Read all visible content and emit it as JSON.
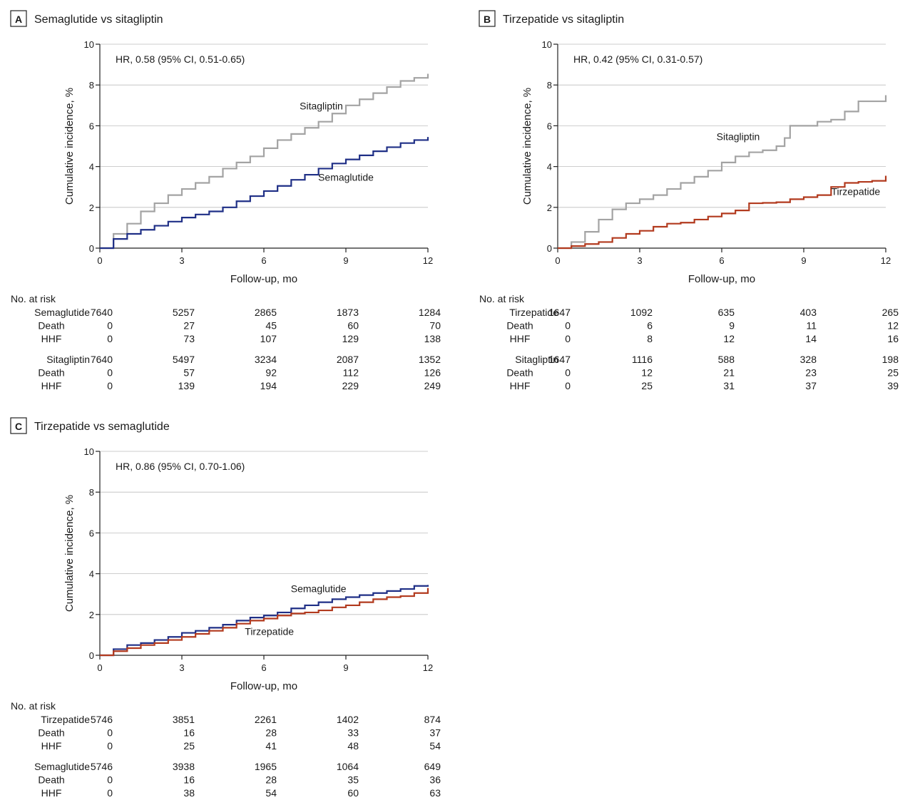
{
  "colors": {
    "sitagliptin": "#a3a3a3",
    "semaglutide": "#1f2f86",
    "tirzepatide": "#b23a1e",
    "axis": "#222222",
    "grid": "#bdbdbd"
  },
  "common": {
    "xlabel": "Follow-up, mo",
    "ylabel": "Cumulative incidence, %",
    "xticks": [
      0,
      3,
      6,
      9,
      12
    ],
    "yticks": [
      0,
      2,
      4,
      6,
      8,
      10
    ],
    "xlim": [
      0,
      12
    ],
    "ylim": [
      0,
      10
    ],
    "risk_header": "No. at risk",
    "sub_rows": [
      "Death",
      "HHF"
    ]
  },
  "chart_data": [
    {
      "type": "line",
      "panel_letter": "A",
      "title": "Semaglutide vs sitagliptin",
      "hr_text": "HR, 0.58 (95% CI, 0.51-0.65)",
      "grid": "horizontal",
      "series": [
        {
          "name": "Sitagliptin",
          "color_key": "sitagliptin",
          "label_at": [
            8.1,
            6.8
          ],
          "points": [
            [
              0,
              0
            ],
            [
              0.5,
              0.7
            ],
            [
              1,
              1.2
            ],
            [
              1.5,
              1.8
            ],
            [
              2,
              2.2
            ],
            [
              2.5,
              2.6
            ],
            [
              3,
              2.9
            ],
            [
              3.5,
              3.2
            ],
            [
              4,
              3.5
            ],
            [
              4.5,
              3.9
            ],
            [
              5,
              4.2
            ],
            [
              5.5,
              4.5
            ],
            [
              6,
              4.9
            ],
            [
              6.5,
              5.3
            ],
            [
              7,
              5.6
            ],
            [
              7.5,
              5.9
            ],
            [
              8,
              6.2
            ],
            [
              8.5,
              6.6
            ],
            [
              9,
              7.0
            ],
            [
              9.5,
              7.3
            ],
            [
              10,
              7.6
            ],
            [
              10.5,
              7.9
            ],
            [
              11,
              8.2
            ],
            [
              11.5,
              8.35
            ],
            [
              12,
              8.55
            ]
          ]
        },
        {
          "name": "Semaglutide",
          "color_key": "semaglutide",
          "label_at": [
            9.0,
            3.3
          ],
          "points": [
            [
              0,
              0
            ],
            [
              0.5,
              0.45
            ],
            [
              1,
              0.7
            ],
            [
              1.5,
              0.9
            ],
            [
              2,
              1.1
            ],
            [
              2.5,
              1.3
            ],
            [
              3,
              1.5
            ],
            [
              3.5,
              1.65
            ],
            [
              4,
              1.8
            ],
            [
              4.5,
              2.0
            ],
            [
              5,
              2.3
            ],
            [
              5.5,
              2.55
            ],
            [
              6,
              2.8
            ],
            [
              6.5,
              3.05
            ],
            [
              7,
              3.35
            ],
            [
              7.5,
              3.6
            ],
            [
              8,
              3.9
            ],
            [
              8.5,
              4.15
            ],
            [
              9,
              4.35
            ],
            [
              9.5,
              4.55
            ],
            [
              10,
              4.75
            ],
            [
              10.5,
              4.95
            ],
            [
              11,
              5.15
            ],
            [
              11.5,
              5.3
            ],
            [
              12,
              5.45
            ]
          ]
        }
      ],
      "risk_groups": [
        {
          "name": "Semaglutide",
          "at_risk": [
            "7640",
            "5257",
            "2865",
            "1873",
            "1284"
          ],
          "death": [
            "0",
            "27",
            "45",
            "60",
            "70"
          ],
          "hhf": [
            "0",
            "73",
            "107",
            "129",
            "138"
          ]
        },
        {
          "name": "Sitagliptin",
          "at_risk": [
            "7640",
            "5497",
            "3234",
            "2087",
            "1352"
          ],
          "death": [
            "0",
            "57",
            "92",
            "112",
            "126"
          ],
          "hhf": [
            "0",
            "139",
            "194",
            "229",
            "249"
          ]
        }
      ]
    },
    {
      "type": "line",
      "panel_letter": "B",
      "title": "Tirzepatide vs sitagliptin",
      "hr_text": "HR, 0.42 (95% CI, 0.31-0.57)",
      "grid": "horizontal",
      "series": [
        {
          "name": "Sitagliptin",
          "color_key": "sitagliptin",
          "label_at": [
            6.6,
            5.3
          ],
          "points": [
            [
              0,
              0
            ],
            [
              0.5,
              0.3
            ],
            [
              1,
              0.8
            ],
            [
              1.5,
              1.4
            ],
            [
              2,
              1.9
            ],
            [
              2.5,
              2.2
            ],
            [
              3,
              2.4
            ],
            [
              3.5,
              2.6
            ],
            [
              4,
              2.9
            ],
            [
              4.5,
              3.2
            ],
            [
              5,
              3.5
            ],
            [
              5.5,
              3.8
            ],
            [
              6,
              4.2
            ],
            [
              6.5,
              4.5
            ],
            [
              7,
              4.7
            ],
            [
              7.5,
              4.8
            ],
            [
              8,
              5.0
            ],
            [
              8.3,
              5.4
            ],
            [
              8.5,
              6.0
            ],
            [
              9,
              6.0
            ],
            [
              9.5,
              6.2
            ],
            [
              10,
              6.3
            ],
            [
              10.5,
              6.7
            ],
            [
              11,
              7.2
            ],
            [
              11.5,
              7.2
            ],
            [
              12,
              7.5
            ]
          ]
        },
        {
          "name": "Tirzepatide",
          "color_key": "tirzepatide",
          "label_at": [
            10.9,
            2.6
          ],
          "points": [
            [
              0,
              0
            ],
            [
              0.5,
              0.1
            ],
            [
              1,
              0.2
            ],
            [
              1.5,
              0.3
            ],
            [
              2,
              0.5
            ],
            [
              2.5,
              0.7
            ],
            [
              3,
              0.85
            ],
            [
              3.5,
              1.05
            ],
            [
              4,
              1.2
            ],
            [
              4.5,
              1.25
            ],
            [
              5,
              1.4
            ],
            [
              5.5,
              1.55
            ],
            [
              6,
              1.7
            ],
            [
              6.5,
              1.85
            ],
            [
              7,
              2.2
            ],
            [
              7.5,
              2.22
            ],
            [
              8,
              2.25
            ],
            [
              8.5,
              2.4
            ],
            [
              9,
              2.5
            ],
            [
              9.5,
              2.6
            ],
            [
              10,
              3.0
            ],
            [
              10.5,
              3.2
            ],
            [
              11,
              3.25
            ],
            [
              11.5,
              3.3
            ],
            [
              12,
              3.55
            ]
          ]
        }
      ],
      "risk_groups": [
        {
          "name": "Tirzepatide",
          "at_risk": [
            "1647",
            "1092",
            "635",
            "403",
            "265"
          ],
          "death": [
            "0",
            "6",
            "9",
            "11",
            "12"
          ],
          "hhf": [
            "0",
            "8",
            "12",
            "14",
            "16"
          ]
        },
        {
          "name": "Sitagliptin",
          "at_risk": [
            "1647",
            "1116",
            "588",
            "328",
            "198"
          ],
          "death": [
            "0",
            "12",
            "21",
            "23",
            "25"
          ],
          "hhf": [
            "0",
            "25",
            "31",
            "37",
            "39"
          ]
        }
      ]
    },
    {
      "type": "line",
      "panel_letter": "C",
      "title": "Tirzepatide vs semaglutide",
      "hr_text": "HR, 0.86 (95% CI, 0.70-1.06)",
      "grid": "horizontal",
      "series": [
        {
          "name": "Semaglutide",
          "color_key": "semaglutide",
          "label_at": [
            8.0,
            3.1
          ],
          "points": [
            [
              0,
              0
            ],
            [
              0.5,
              0.3
            ],
            [
              1,
              0.5
            ],
            [
              1.5,
              0.6
            ],
            [
              2,
              0.75
            ],
            [
              2.5,
              0.9
            ],
            [
              3,
              1.1
            ],
            [
              3.5,
              1.2
            ],
            [
              4,
              1.35
            ],
            [
              4.5,
              1.5
            ],
            [
              5,
              1.7
            ],
            [
              5.5,
              1.85
            ],
            [
              6,
              1.95
            ],
            [
              6.5,
              2.1
            ],
            [
              7,
              2.3
            ],
            [
              7.5,
              2.45
            ],
            [
              8,
              2.6
            ],
            [
              8.5,
              2.75
            ],
            [
              9,
              2.85
            ],
            [
              9.5,
              2.95
            ],
            [
              10,
              3.05
            ],
            [
              10.5,
              3.15
            ],
            [
              11,
              3.25
            ],
            [
              11.5,
              3.4
            ],
            [
              12,
              3.45
            ]
          ]
        },
        {
          "name": "Tirzepatide",
          "color_key": "tirzepatide",
          "label_at": [
            6.2,
            1.0
          ],
          "points": [
            [
              0,
              0
            ],
            [
              0.5,
              0.2
            ],
            [
              1,
              0.35
            ],
            [
              1.5,
              0.5
            ],
            [
              2,
              0.6
            ],
            [
              2.5,
              0.75
            ],
            [
              3,
              0.9
            ],
            [
              3.5,
              1.05
            ],
            [
              4,
              1.2
            ],
            [
              4.5,
              1.35
            ],
            [
              5,
              1.55
            ],
            [
              5.5,
              1.7
            ],
            [
              6,
              1.8
            ],
            [
              6.5,
              1.95
            ],
            [
              7,
              2.05
            ],
            [
              7.5,
              2.1
            ],
            [
              8,
              2.2
            ],
            [
              8.5,
              2.35
            ],
            [
              9,
              2.45
            ],
            [
              9.5,
              2.6
            ],
            [
              10,
              2.75
            ],
            [
              10.5,
              2.85
            ],
            [
              11,
              2.9
            ],
            [
              11.5,
              3.05
            ],
            [
              12,
              3.3
            ]
          ]
        }
      ],
      "risk_groups": [
        {
          "name": "Tirzepatide",
          "at_risk": [
            "5746",
            "3851",
            "2261",
            "1402",
            "874"
          ],
          "death": [
            "0",
            "16",
            "28",
            "33",
            "37"
          ],
          "hhf": [
            "0",
            "25",
            "41",
            "48",
            "54"
          ]
        },
        {
          "name": "Semaglutide",
          "at_risk": [
            "5746",
            "3938",
            "1965",
            "1064",
            "649"
          ],
          "death": [
            "0",
            "16",
            "28",
            "35",
            "36"
          ],
          "hhf": [
            "0",
            "38",
            "54",
            "60",
            "63"
          ]
        }
      ]
    }
  ]
}
